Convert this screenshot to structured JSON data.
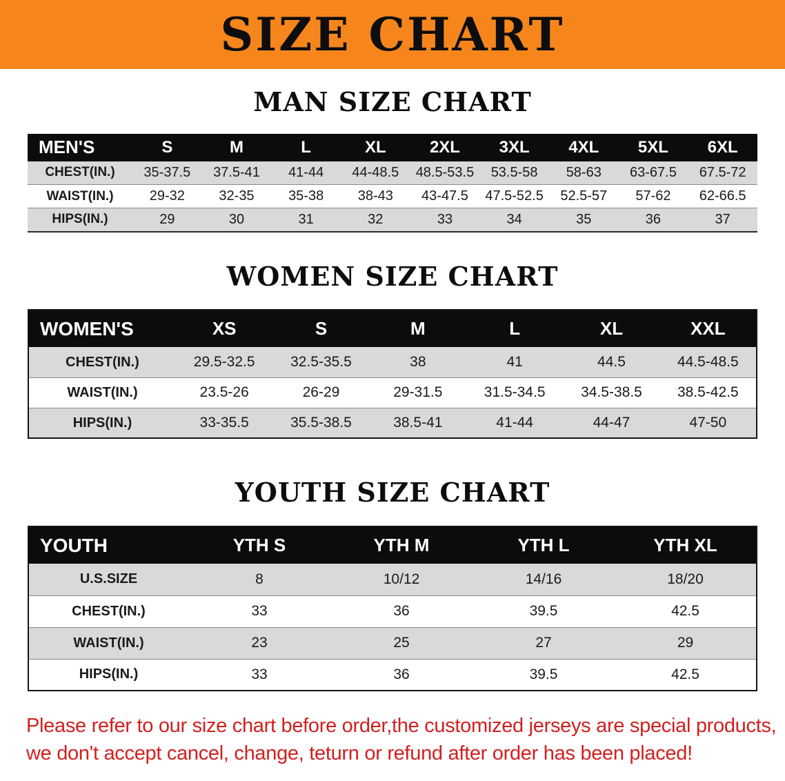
{
  "banner": {
    "title": "SIZE CHART",
    "bg_color": "#F6861C"
  },
  "sections": [
    {
      "heading": "MAN SIZE CHART",
      "table": {
        "header": [
          "MEN'S",
          "S",
          "M",
          "L",
          "XL",
          "2XL",
          "3XL",
          "4XL",
          "5XL",
          "6XL"
        ],
        "rows": [
          [
            "CHEST(IN.)",
            "35-37.5",
            "37.5-41",
            "41-44",
            "44-48.5",
            "48.5-53.5",
            "53.5-58",
            "58-63",
            "63-67.5",
            "67.5-72"
          ],
          [
            "WAIST(IN.)",
            "29-32",
            "32-35",
            "35-38",
            "38-43",
            "43-47.5",
            "47.5-52.5",
            "52.5-57",
            "57-62",
            "62-66.5"
          ],
          [
            "HIPS(IN.)",
            "29",
            "30",
            "31",
            "32",
            "33",
            "34",
            "35",
            "36",
            "37"
          ]
        ]
      }
    },
    {
      "heading": "WOMEN SIZE CHART",
      "table": {
        "header": [
          "WOMEN'S",
          "XS",
          "S",
          "M",
          "L",
          "XL",
          "XXL"
        ],
        "rows": [
          [
            "CHEST(IN.)",
            "29.5-32.5",
            "32.5-35.5",
            "38",
            "41",
            "44.5",
            "44.5-48.5"
          ],
          [
            "WAIST(IN.)",
            "23.5-26",
            "26-29",
            "29-31.5",
            "31.5-34.5",
            "34.5-38.5",
            "38.5-42.5"
          ],
          [
            "HIPS(IN.)",
            "33-35.5",
            "35.5-38.5",
            "38.5-41",
            "41-44",
            "44-47",
            "47-50"
          ]
        ]
      }
    },
    {
      "heading": "YOUTH SIZE CHART",
      "table": {
        "header": [
          "YOUTH",
          "YTH S",
          "YTH M",
          "YTH L",
          "YTH XL"
        ],
        "rows": [
          [
            "U.S.SIZE",
            "8",
            "10/12",
            "14/16",
            "18/20"
          ],
          [
            "CHEST(IN.)",
            "33",
            "36",
            "39.5",
            "42.5"
          ],
          [
            "WAIST(IN.)",
            "23",
            "25",
            "27",
            "29"
          ],
          [
            "HIPS(IN.)",
            "33",
            "36",
            "39.5",
            "42.5"
          ]
        ]
      }
    }
  ],
  "footer": {
    "line1": "Please refer to our size chart before order,the customized jerseys are special products,",
    "line2": "we don't accept cancel, change, teturn or refund after order has been placed!",
    "text_color": "#D21F1F"
  }
}
